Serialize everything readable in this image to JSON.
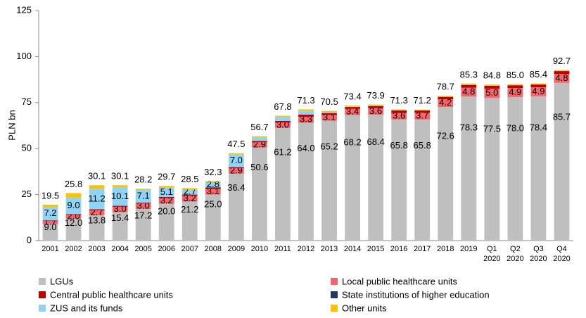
{
  "chart_data": {
    "type": "stacked-bar",
    "y_label": "PLN bn",
    "categories": [
      "2001",
      "2002",
      "2003",
      "2004",
      "2005",
      "2006",
      "2007",
      "2008",
      "2009",
      "2010",
      "2011",
      "2012",
      "2013",
      "2014",
      "2015",
      "2016",
      "2017",
      "2018",
      "2019",
      "Q1 2020",
      "Q2 2020",
      "Q3 2020",
      "Q4 2020"
    ],
    "series": [
      {
        "name": "LGUs",
        "color": "#bfbfbf",
        "values": [
          9.0,
          12.0,
          13.8,
          15.4,
          17.2,
          20.0,
          21.2,
          25.0,
          36.4,
          50.6,
          61.2,
          64.0,
          65.2,
          68.2,
          68.4,
          65.8,
          65.8,
          72.6,
          78.3,
          77.5,
          78.0,
          78.4,
          85.7
        ],
        "value_labels": [
          "9.0",
          "12.0",
          "13.8",
          "15.4",
          "17.2",
          "20.0",
          "21.2",
          "25.0",
          "36.4",
          "50.6",
          "61.2",
          "64.0",
          "65.2",
          "68.2",
          "68.4",
          "65.8",
          "65.8",
          "72.6",
          "78.3",
          "77.5",
          "78.0",
          "78.4",
          "85.7"
        ]
      },
      {
        "name": "Local public healthcare units",
        "color": "#f4656b",
        "values": [
          1.7,
          2.0,
          2.7,
          3.0,
          3.0,
          3.2,
          3.2,
          3.1,
          2.9,
          2.9,
          3.0,
          3.3,
          3.1,
          3.4,
          3.6,
          3.6,
          3.7,
          4.2,
          4.8,
          5.0,
          4.9,
          4.9,
          4.8
        ],
        "value_labels": [
          "1.7",
          "2.0",
          "2.7",
          "3.0",
          "3.0",
          "3.2",
          "3.2",
          "3.1",
          "2.9",
          "2.9",
          "3.0",
          "3.3",
          "3.1",
          "3.4",
          "3.6",
          "3.6",
          "3.7",
          "4.2",
          "4.8",
          "5.0",
          "4.9",
          "4.9",
          "4.8"
        ]
      },
      {
        "name": "Central public healthcare units",
        "color": "#c00000",
        "values": [
          0.3,
          0.4,
          0.5,
          0.5,
          0.4,
          0.5,
          0.6,
          0.6,
          0.6,
          0.6,
          0.8,
          1.2,
          1.0,
          1.0,
          1.1,
          1.3,
          1.2,
          1.3,
          1.5,
          1.6,
          1.5,
          1.5,
          1.6
        ]
      },
      {
        "name": "State institutions of higher education",
        "color": "#1f3864",
        "values": [
          0,
          0,
          0,
          0,
          0,
          0,
          0,
          0.3,
          0,
          0,
          0,
          0,
          0,
          0,
          0,
          0,
          0,
          0,
          0,
          0,
          0,
          0,
          0
        ]
      },
      {
        "name": "ZUS and its funds",
        "color": "#8fd3f5",
        "values": [
          7.2,
          9.0,
          11.2,
          10.1,
          7.1,
          5.1,
          2.7,
          2.8,
          7.0,
          2.0,
          2.2,
          2.0,
          0.6,
          0.3,
          0.3,
          0.2,
          0.1,
          0.2,
          0.2,
          0.2,
          0.1,
          0.1,
          0.1
        ],
        "value_labels": [
          "7.2",
          "9.0",
          "11.2",
          "10.1",
          "7.1",
          "5.1",
          "2.7",
          "2.8",
          "7.0",
          null,
          null,
          null,
          null,
          null,
          null,
          null,
          null,
          null,
          null,
          null,
          null,
          null,
          null
        ]
      },
      {
        "name": "Other units",
        "color": "#ffc000",
        "values": [
          1.3,
          2.4,
          1.9,
          1.1,
          0.5,
          0.9,
          0.8,
          0.5,
          0.6,
          0.6,
          0.6,
          0.8,
          0.6,
          0.5,
          0.5,
          0.4,
          0.4,
          0.4,
          0.5,
          0.5,
          0.5,
          0.5,
          0.5
        ]
      }
    ],
    "totals": [
      19.5,
      25.8,
      30.1,
      30.1,
      28.2,
      29.7,
      28.5,
      32.3,
      47.5,
      56.7,
      67.8,
      71.3,
      70.5,
      73.4,
      73.9,
      71.3,
      71.2,
      78.7,
      85.3,
      84.8,
      85.0,
      85.4,
      92.7
    ],
    "total_labels": [
      "19.5",
      "25.8",
      "30.1",
      "30.1",
      "28.2",
      "29.7",
      "28.5",
      "32.3",
      "47.5",
      "56.7",
      "67.8",
      "71.3",
      "70.5",
      "73.4",
      "73.9",
      "71.3",
      "71.2",
      "78.7",
      "85.3",
      "84.8",
      "85.0",
      "85.4",
      "92.7"
    ],
    "ylim": [
      0,
      125
    ],
    "yticks": [
      0,
      25,
      50,
      75,
      100,
      125
    ],
    "grid": false
  }
}
